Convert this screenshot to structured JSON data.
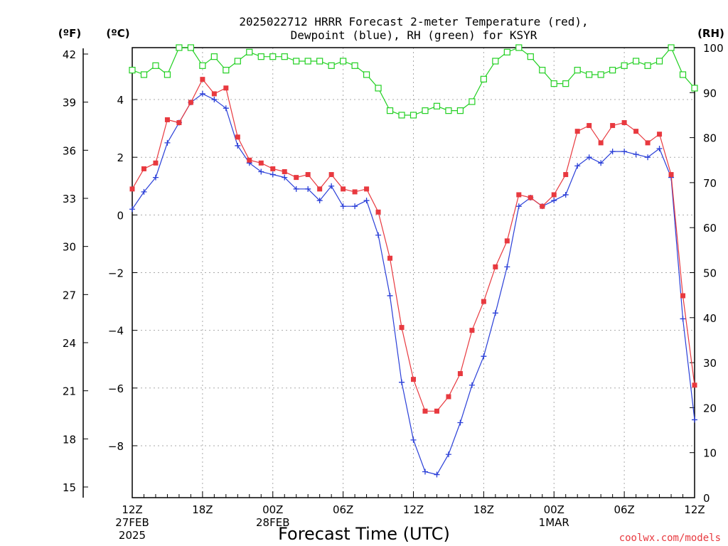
{
  "chart_data": {
    "type": "line",
    "title_line1": "2025022712 HRRR Forecast 2-meter Temperature (red),",
    "title_line2": "Dewpoint (blue), RH (green) for KSYR",
    "units": {
      "fahrenheit": "(ºF)",
      "celsius": "(ºC)",
      "rh": "(RH)"
    },
    "xlabel": "Forecast Time (UTC)",
    "credit": "coolwx.com/models",
    "x_ticks": [
      {
        "hour": 0,
        "label": "12Z",
        "sub1": "27FEB",
        "sub2": "2025"
      },
      {
        "hour": 6,
        "label": "18Z",
        "sub1": "",
        "sub2": ""
      },
      {
        "hour": 12,
        "label": "00Z",
        "sub1": "28FEB",
        "sub2": ""
      },
      {
        "hour": 18,
        "label": "06Z",
        "sub1": "",
        "sub2": ""
      },
      {
        "hour": 24,
        "label": "12Z",
        "sub1": "",
        "sub2": ""
      },
      {
        "hour": 30,
        "label": "18Z",
        "sub1": "",
        "sub2": ""
      },
      {
        "hour": 36,
        "label": "00Z",
        "sub1": "1MAR",
        "sub2": ""
      },
      {
        "hour": 42,
        "label": "06Z",
        "sub1": "",
        "sub2": ""
      },
      {
        "hour": 48,
        "label": "12Z",
        "sub1": "",
        "sub2": ""
      }
    ],
    "xlim": [
      0,
      48
    ],
    "celsius_range": [
      -9.8,
      5.8
    ],
    "celsius_ticks": [
      4,
      2,
      0,
      -2,
      -4,
      -6,
      -8
    ],
    "celsius_tick_labels": [
      "4",
      "2",
      "0",
      "−2",
      "−4",
      "−6",
      "−8"
    ],
    "fahrenheit_ticks": [
      42,
      39,
      36,
      33,
      30,
      27,
      24,
      21,
      18,
      15
    ],
    "rh_range": [
      0,
      100
    ],
    "rh_ticks": [
      0,
      10,
      20,
      30,
      40,
      50,
      60,
      70,
      80,
      90,
      100
    ],
    "grid": true,
    "colors": {
      "temperature": "#e8393f",
      "dewpoint": "#2a3fd8",
      "rh": "#22d022",
      "grid": "#aaaaaa",
      "credit": "#e8393f"
    },
    "series": [
      {
        "key": "temperature",
        "axis": "celsius",
        "marker": "filled-square",
        "x": [
          0,
          1,
          2,
          3,
          4,
          5,
          6,
          7,
          8,
          9,
          10,
          11,
          12,
          13,
          14,
          15,
          16,
          17,
          18,
          19,
          20,
          21,
          22,
          23,
          24,
          25,
          26,
          27,
          28,
          29,
          30,
          31,
          32,
          33,
          34,
          35,
          36,
          37,
          38,
          39,
          40,
          41,
          42,
          43,
          44,
          45,
          46,
          47,
          48
        ],
        "values": [
          0.9,
          1.6,
          1.8,
          3.3,
          3.2,
          3.9,
          4.7,
          4.2,
          4.4,
          2.7,
          1.9,
          1.8,
          1.6,
          1.5,
          1.3,
          1.4,
          0.9,
          1.4,
          0.9,
          0.8,
          0.9,
          0.1,
          -1.5,
          -3.9,
          -5.7,
          -6.8,
          -6.8,
          -6.3,
          -5.5,
          -4.0,
          -3.0,
          -1.8,
          -0.9,
          0.7,
          0.6,
          0.3,
          0.7,
          1.4,
          2.9,
          3.1,
          2.5,
          3.1,
          3.2,
          2.9,
          2.5,
          2.8,
          1.4,
          -2.8,
          -5.9
        ]
      },
      {
        "key": "dewpoint",
        "axis": "celsius",
        "marker": "plus",
        "x": [
          0,
          1,
          2,
          3,
          4,
          5,
          6,
          7,
          8,
          9,
          10,
          11,
          12,
          13,
          14,
          15,
          16,
          17,
          18,
          19,
          20,
          21,
          22,
          23,
          24,
          25,
          26,
          27,
          28,
          29,
          30,
          31,
          32,
          33,
          34,
          35,
          36,
          37,
          38,
          39,
          40,
          41,
          42,
          43,
          44,
          45,
          46,
          47,
          48
        ],
        "values": [
          0.2,
          0.8,
          1.3,
          2.5,
          3.2,
          3.9,
          4.2,
          4.0,
          3.7,
          2.4,
          1.8,
          1.5,
          1.4,
          1.3,
          0.9,
          0.9,
          0.5,
          1.0,
          0.3,
          0.3,
          0.5,
          -0.7,
          -2.8,
          -5.8,
          -7.8,
          -8.9,
          -9.0,
          -8.3,
          -7.2,
          -5.9,
          -4.9,
          -3.4,
          -1.8,
          0.3,
          0.6,
          0.3,
          0.5,
          0.7,
          1.7,
          2.0,
          1.8,
          2.2,
          2.2,
          2.1,
          2.0,
          2.3,
          1.3,
          -3.6,
          -7.1
        ]
      },
      {
        "key": "rh",
        "axis": "rh",
        "marker": "open-square",
        "x": [
          0,
          1,
          2,
          3,
          4,
          5,
          6,
          7,
          8,
          9,
          10,
          11,
          12,
          13,
          14,
          15,
          16,
          17,
          18,
          19,
          20,
          21,
          22,
          23,
          24,
          25,
          26,
          27,
          28,
          29,
          30,
          31,
          32,
          33,
          34,
          35,
          36,
          37,
          38,
          39,
          40,
          41,
          42,
          43,
          44,
          45,
          46,
          47,
          48
        ],
        "values": [
          95,
          94,
          96,
          94,
          100,
          100,
          96,
          98,
          95,
          97,
          99,
          98,
          98,
          98,
          97,
          97,
          97,
          96,
          97,
          96,
          94,
          91,
          86,
          85,
          85,
          86,
          87,
          86,
          86,
          88,
          93,
          97,
          99,
          100,
          98,
          95,
          92,
          92,
          95,
          94,
          94,
          95,
          96,
          97,
          96,
          97,
          100,
          94,
          91
        ]
      }
    ]
  }
}
